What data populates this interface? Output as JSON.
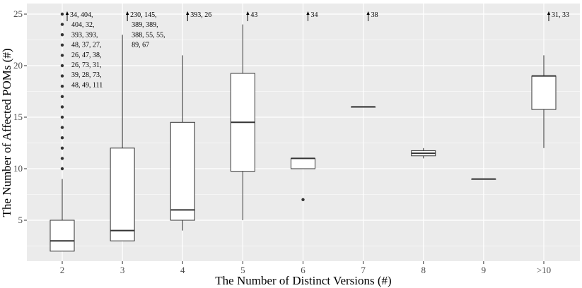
{
  "chart_data": {
    "type": "boxplot",
    "xlabel": "The Number of Distinct Versions (#)",
    "ylabel": "The Number of Affected POMs (#)",
    "categories": [
      "2",
      "3",
      "4",
      "5",
      "6",
      "7",
      "8",
      "9",
      ">10"
    ],
    "ylim": [
      1,
      25.4
    ],
    "yticks": [
      "5",
      "10",
      "15",
      "20",
      "25"
    ],
    "ytick_values": [
      5,
      10,
      15,
      20,
      25
    ],
    "grid": true,
    "boxes": [
      {
        "category": "2",
        "q1": 2,
        "median": 3,
        "q3": 5,
        "whisker_low": 2,
        "whisker_high": 9,
        "outliers": [
          10,
          11,
          12,
          13,
          14,
          15,
          16,
          17,
          18,
          19,
          20,
          21,
          22,
          23,
          24,
          25
        ]
      },
      {
        "category": "3",
        "q1": 3,
        "median": 4,
        "q3": 12,
        "whisker_low": 3,
        "whisker_high": 23,
        "outliers": []
      },
      {
        "category": "4",
        "q1": 5,
        "median": 6,
        "q3": 14.5,
        "whisker_low": 4,
        "whisker_high": 21,
        "outliers": []
      },
      {
        "category": "5",
        "q1": 9.75,
        "median": 14.5,
        "q3": 19.25,
        "whisker_low": 5,
        "whisker_high": 24,
        "outliers": []
      },
      {
        "category": "6",
        "q1": 10,
        "median": 11,
        "q3": 11,
        "whisker_low": 10,
        "whisker_high": 11,
        "outliers": [
          7
        ]
      },
      {
        "category": "7",
        "q1": 16,
        "median": 16,
        "q3": 16,
        "whisker_low": 16,
        "whisker_high": 16,
        "outliers": []
      },
      {
        "category": "8",
        "q1": 11.25,
        "median": 11.5,
        "q3": 11.75,
        "whisker_low": 11,
        "whisker_high": 12,
        "outliers": []
      },
      {
        "category": "9",
        "q1": 9,
        "median": 9,
        "q3": 9,
        "whisker_low": 9,
        "whisker_high": 9,
        "outliers": []
      },
      {
        "category": ">10",
        "q1": 15.75,
        "median": 19,
        "q3": 19,
        "whisker_low": 12,
        "whisker_high": 21,
        "outliers": []
      }
    ],
    "annotations": [
      {
        "category": "2",
        "lines": [
          "34, 404,",
          "404, 32,",
          "393, 393,",
          "48, 37, 27,",
          "26, 47, 38,",
          "26, 73, 31,",
          "39, 28, 73,",
          "48, 49, 111"
        ]
      },
      {
        "category": "3",
        "lines": [
          "230, 145,",
          "389, 389,",
          "388, 55, 55,",
          "89, 67"
        ]
      },
      {
        "category": "4",
        "lines": [
          "393, 26"
        ]
      },
      {
        "category": "5",
        "lines": [
          "43"
        ]
      },
      {
        "category": "6",
        "lines": [
          "34"
        ]
      },
      {
        "category": "7",
        "lines": [
          "38"
        ]
      },
      {
        "category": ">10",
        "lines": [
          "31, 33"
        ]
      }
    ],
    "colors": {
      "panel": "#ebebeb",
      "grid": "#ffffff",
      "box_fill": "#ffffff",
      "stroke": "#333333",
      "text": "#4d4d4d"
    }
  }
}
